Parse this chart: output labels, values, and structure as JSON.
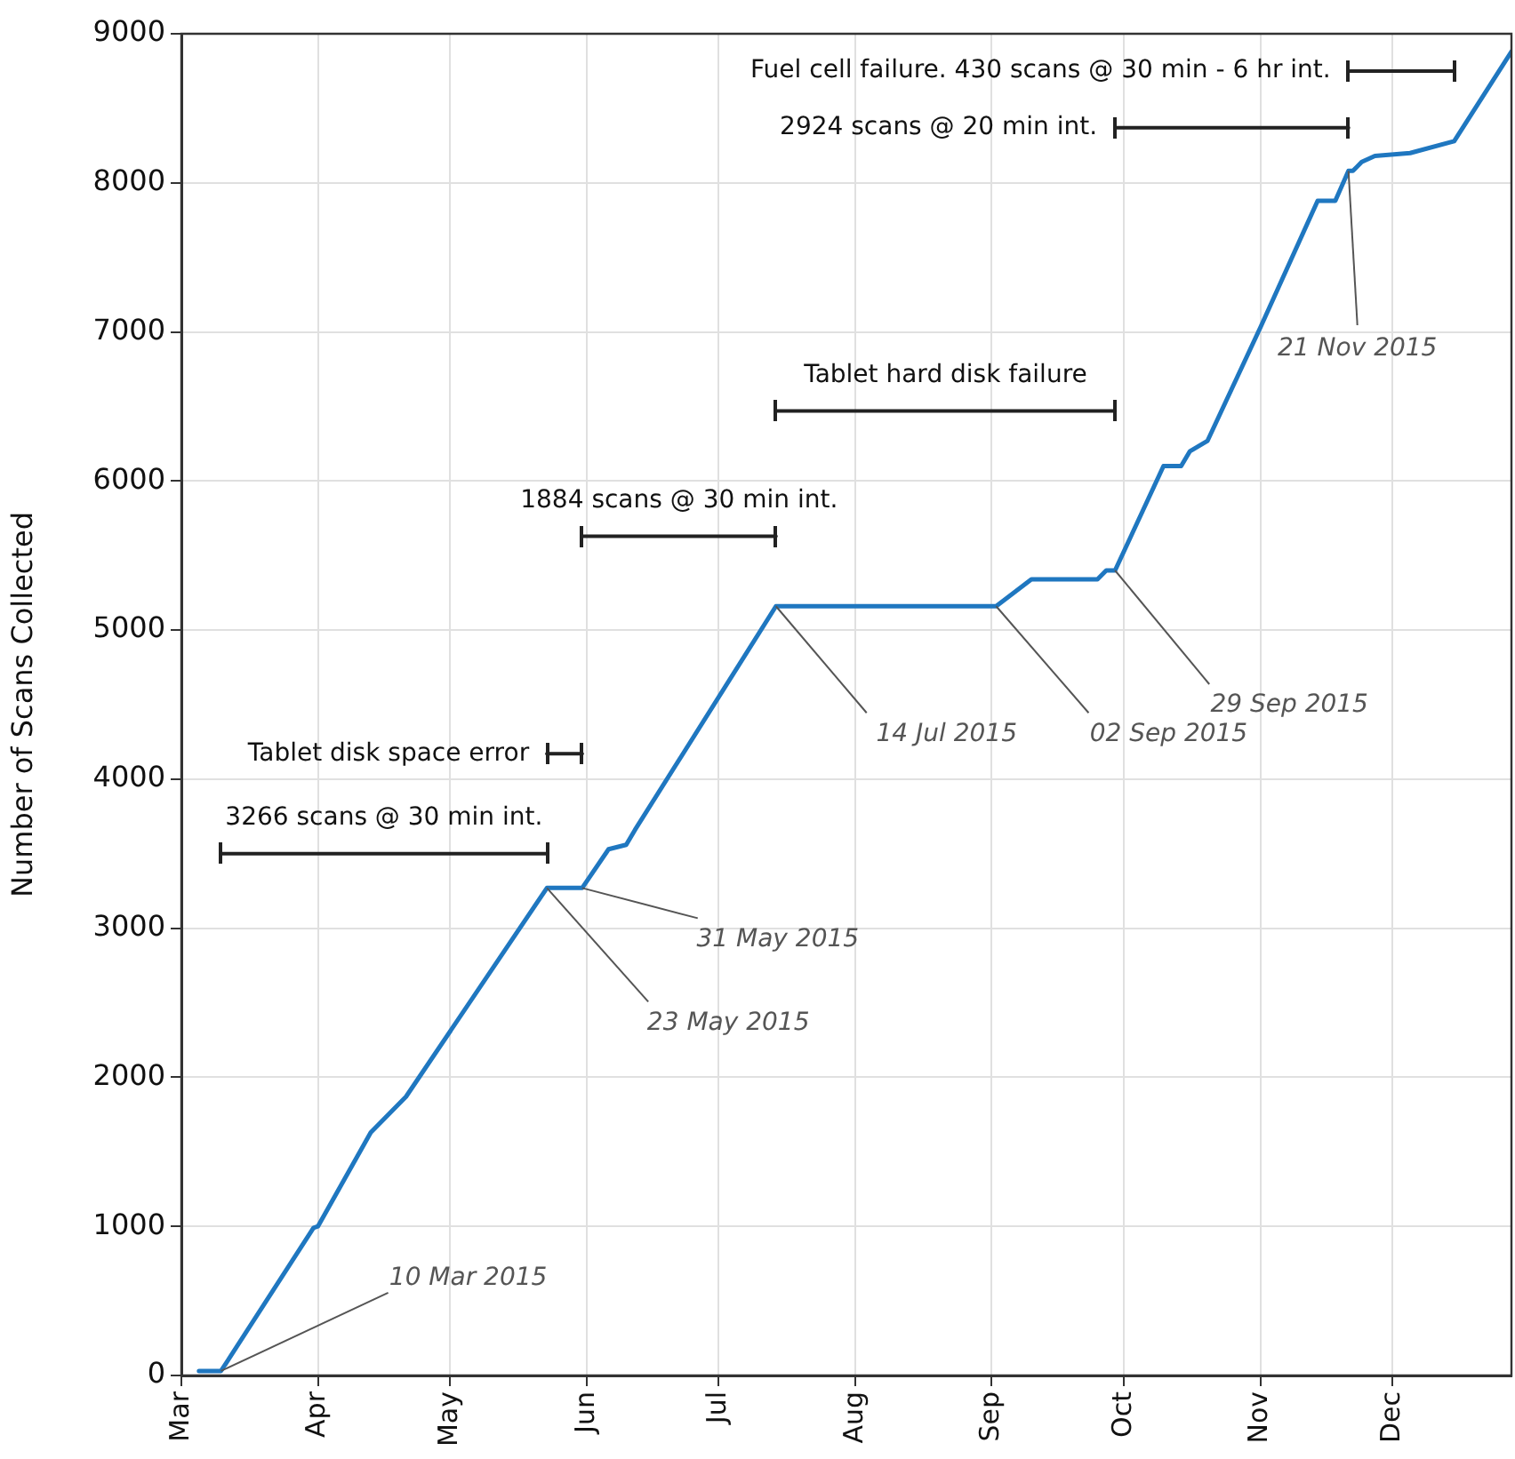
{
  "chart_data": {
    "type": "line",
    "ylabel": "Number of Scans Collected",
    "xlim": [
      "2015-03-01",
      "2015-12-28"
    ],
    "xticks": [
      {
        "value": "2015-03-01",
        "label": "Mar"
      },
      {
        "value": "2015-04-01",
        "label": "Apr"
      },
      {
        "value": "2015-05-01",
        "label": "May"
      },
      {
        "value": "2015-06-01",
        "label": "Jun"
      },
      {
        "value": "2015-07-01",
        "label": "Jul"
      },
      {
        "value": "2015-08-01",
        "label": "Aug"
      },
      {
        "value": "2015-09-01",
        "label": "Sep"
      },
      {
        "value": "2015-10-01",
        "label": "Oct"
      },
      {
        "value": "2015-11-01",
        "label": "Nov"
      },
      {
        "value": "2015-12-01",
        "label": "Dec"
      }
    ],
    "ylim": [
      0,
      9000
    ],
    "yticks": [
      0,
      1000,
      2000,
      3000,
      4000,
      5000,
      6000,
      7000,
      8000,
      9000
    ],
    "grid": true,
    "legend": false,
    "marker": "none",
    "line_style": "solid",
    "series": [
      {
        "color": "#1f77c0",
        "x": [
          "2015-03-05",
          "2015-03-10",
          "2015-03-31",
          "2015-04-01",
          "2015-04-13",
          "2015-04-21",
          "2015-05-23",
          "2015-05-31",
          "2015-06-06",
          "2015-06-10",
          "2015-06-12",
          "2015-07-14",
          "2015-09-02",
          "2015-09-10",
          "2015-09-25",
          "2015-09-27",
          "2015-09-29",
          "2015-10-10",
          "2015-10-14",
          "2015-10-16",
          "2015-10-20",
          "2015-11-01",
          "2015-11-14",
          "2015-11-18",
          "2015-11-21",
          "2015-11-22",
          "2015-11-24",
          "2015-11-27",
          "2015-12-05",
          "2015-12-15",
          "2015-12-28"
        ],
        "values": [
          30,
          30,
          990,
          1000,
          1630,
          1870,
          3270,
          3270,
          3530,
          3560,
          3660,
          5160,
          5160,
          5340,
          5340,
          5400,
          5400,
          6100,
          6100,
          6200,
          6270,
          7030,
          7880,
          7880,
          8080,
          8080,
          8140,
          8180,
          8200,
          8280,
          8880
        ]
      },
      {
        "type": "line",
        "color": "#222222",
        "x": [
          "2015-03-10",
          "2015-05-23"
        ],
        "values": [
          3500,
          3500
        ]
      },
      {
        "type": "line",
        "color": "#222222",
        "x": [
          "2015-05-23",
          "2015-05-31"
        ],
        "values": [
          4170,
          4170
        ]
      },
      {
        "type": "line",
        "color": "#222222",
        "x": [
          "2015-05-31",
          "2015-07-14"
        ],
        "values": [
          5630,
          5630
        ]
      },
      {
        "type": "line",
        "color": "#222222",
        "x": [
          "2015-07-14",
          "2015-09-29"
        ],
        "values": [
          6470,
          6470
        ]
      },
      {
        "type": "line",
        "color": "#222222",
        "x": [
          "2015-09-29",
          "2015-11-21"
        ],
        "values": [
          8370,
          8370
        ]
      },
      {
        "type": "line",
        "color": "#222222",
        "x": [
          "2015-11-21",
          "2015-12-15"
        ],
        "values": [
          8750,
          8750
        ]
      }
    ],
    "annotations": [
      {
        "text": "3266 scans @ 30 min int.",
        "x": "2015-03-10",
        "y": 3500
      },
      {
        "text": "Tablet disk space error",
        "x": "2015-05-23",
        "y": 4170
      },
      {
        "text": "1884 scans @ 30 min int.",
        "x": "2015-05-31",
        "y": 5630
      },
      {
        "text": "Tablet hard disk failure",
        "x": "2015-07-14",
        "y": 6470
      },
      {
        "text": "2924 scans @ 20 min int.",
        "x": "2015-09-29",
        "y": 8370
      },
      {
        "text": "Fuel cell failure. 430 scans @ 30 min - 6 hr int.",
        "x": "2015-11-21",
        "y": 8750
      },
      {
        "text": "10 Mar 2015",
        "x": "2015-03-10",
        "y": 30
      },
      {
        "text": "23 May 2015",
        "x": "2015-05-23",
        "y": 3270
      },
      {
        "text": "31 May 2015",
        "x": "2015-05-31",
        "y": 3270
      },
      {
        "text": "14 Jul 2015",
        "x": "2015-07-14",
        "y": 5160
      },
      {
        "text": "02 Sep 2015",
        "x": "2015-09-02",
        "y": 5160
      },
      {
        "text": "29 Sep 2015",
        "x": "2015-09-29",
        "y": 5400
      },
      {
        "text": "21 Nov 2015",
        "x": "2015-11-21",
        "y": 8080
      }
    ]
  }
}
